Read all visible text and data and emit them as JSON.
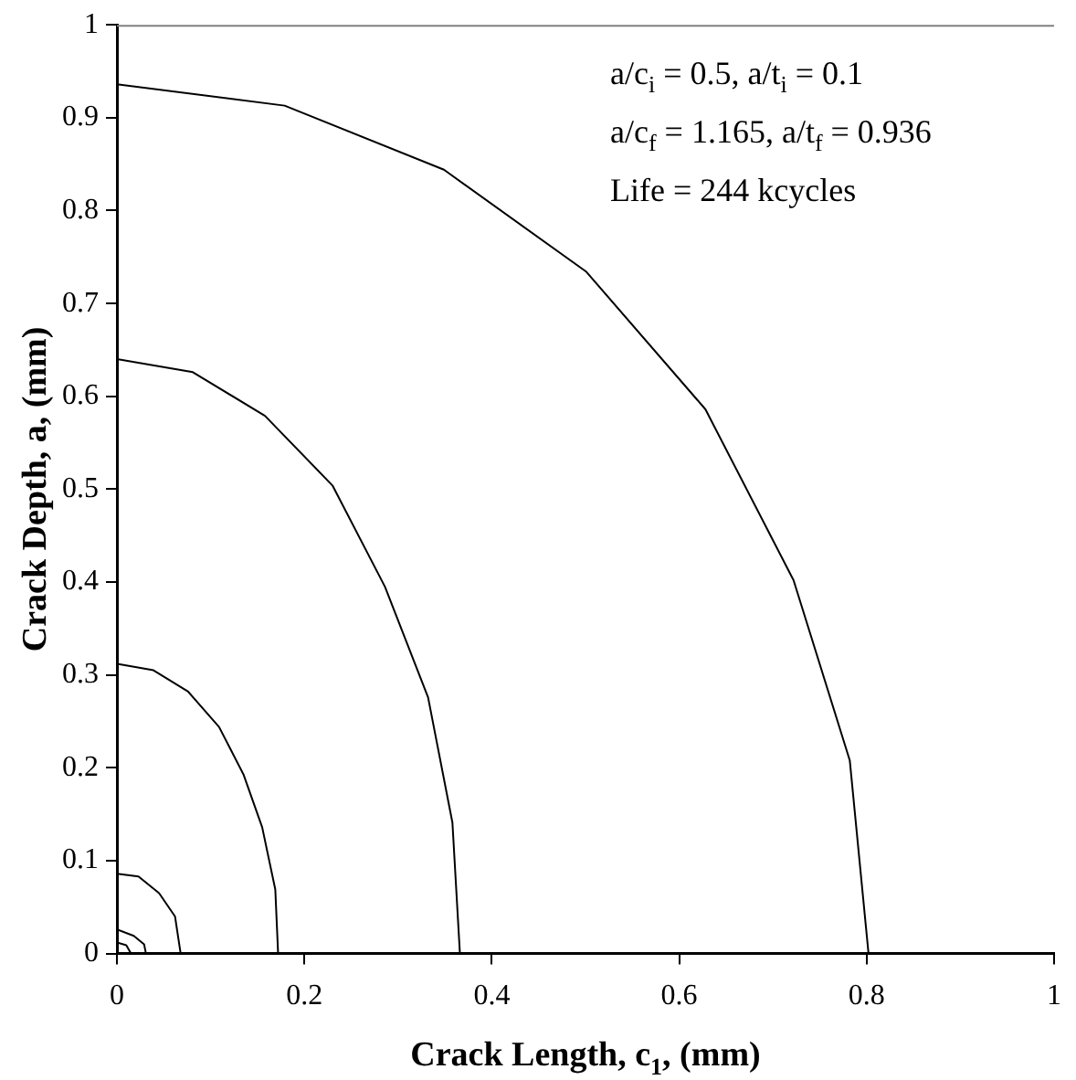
{
  "chart_data": {
    "type": "line",
    "xlabel": "Crack Length, c$_{1}$, (mm)",
    "ylabel": "Crack Depth, a, (mm)",
    "annotations": [
      "a/c$_{i}$ = 0.5, a/t$_{i}$ = 0.1",
      "a/c$_{f}$ = 1.165, a/t$_{f}$ = 0.936",
      "Life = 244 kcycles"
    ],
    "xlim": [
      0,
      1
    ],
    "xticks": [
      0,
      0.2,
      0.4,
      0.6,
      0.8,
      1
    ],
    "ylim": [
      0,
      1
    ],
    "yticks": [
      0,
      0.1,
      0.2,
      0.3,
      0.4,
      0.5,
      0.6,
      0.7,
      0.8,
      0.9,
      1
    ],
    "grid": false,
    "legend": false,
    "marker": "none",
    "line_style": "solid",
    "series": [
      {
        "color": "#000000",
        "x": [
          0,
          0.179,
          0.349,
          0.501,
          0.628,
          0.722,
          0.782,
          0.802
        ],
        "values": [
          0.936,
          0.913,
          0.844,
          0.734,
          0.586,
          0.402,
          0.208,
          0
        ]
      },
      {
        "color": "#000000",
        "x": [
          0,
          0.081,
          0.158,
          0.23,
          0.286,
          0.332,
          0.358,
          0.366
        ],
        "values": [
          0.64,
          0.626,
          0.579,
          0.504,
          0.395,
          0.276,
          0.141,
          0
        ]
      },
      {
        "color": "#000000",
        "x": [
          0,
          0.039,
          0.076,
          0.109,
          0.135,
          0.155,
          0.169,
          0.172
        ],
        "values": [
          0.312,
          0.305,
          0.282,
          0.244,
          0.193,
          0.136,
          0.069,
          0
        ]
      },
      {
        "color": "#000000",
        "x": [
          0,
          0.023,
          0.045,
          0.062,
          0.068
        ],
        "values": [
          0.086,
          0.083,
          0.065,
          0.04,
          0
        ]
      },
      {
        "color": "#000000",
        "x": [
          0,
          0.018,
          0.029,
          0.031
        ],
        "values": [
          0.026,
          0.019,
          0.01,
          0
        ]
      },
      {
        "color": "#000000",
        "x": [
          0,
          0.01,
          0.015
        ],
        "values": [
          0.012,
          0.009,
          0
        ]
      }
    ]
  }
}
